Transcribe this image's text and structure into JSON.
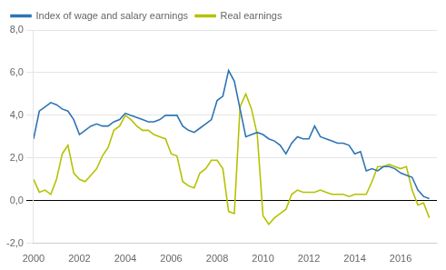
{
  "chart_data": {
    "type": "line",
    "x": [
      2000.0,
      2000.25,
      2000.5,
      2000.75,
      2001.0,
      2001.25,
      2001.5,
      2001.75,
      2002.0,
      2002.25,
      2002.5,
      2002.75,
      2003.0,
      2003.25,
      2003.5,
      2003.75,
      2004.0,
      2004.25,
      2004.5,
      2004.75,
      2005.0,
      2005.25,
      2005.5,
      2005.75,
      2006.0,
      2006.25,
      2006.5,
      2006.75,
      2007.0,
      2007.25,
      2007.5,
      2007.75,
      2008.0,
      2008.25,
      2008.5,
      2008.75,
      2009.0,
      2009.25,
      2009.5,
      2009.75,
      2010.0,
      2010.25,
      2010.5,
      2010.75,
      2011.0,
      2011.25,
      2011.5,
      2011.75,
      2012.0,
      2012.25,
      2012.5,
      2012.75,
      2013.0,
      2013.25,
      2013.5,
      2013.75,
      2014.0,
      2014.25,
      2014.5,
      2014.75,
      2015.0,
      2015.25,
      2015.5,
      2015.75,
      2016.0,
      2016.25,
      2016.5,
      2016.75,
      2017.0,
      2017.25
    ],
    "series": [
      {
        "name": "Index of wage and salary earnings",
        "color": "#2e74b5",
        "values": [
          2.9,
          4.2,
          4.4,
          4.6,
          4.5,
          4.3,
          4.2,
          3.8,
          3.1,
          3.3,
          3.5,
          3.6,
          3.5,
          3.5,
          3.7,
          3.8,
          4.1,
          4.0,
          3.9,
          3.8,
          3.7,
          3.7,
          3.8,
          4.0,
          4.0,
          4.0,
          3.5,
          3.3,
          3.2,
          3.4,
          3.6,
          3.8,
          4.7,
          4.9,
          6.1,
          5.6,
          4.3,
          3.0,
          3.1,
          3.2,
          3.1,
          2.9,
          2.8,
          2.6,
          2.2,
          2.7,
          3.0,
          2.9,
          2.9,
          3.5,
          3.0,
          2.9,
          2.8,
          2.7,
          2.7,
          2.6,
          2.2,
          2.3,
          1.4,
          1.5,
          1.4,
          1.6,
          1.6,
          1.5,
          1.3,
          1.2,
          1.1,
          0.5,
          0.2,
          0.1
        ]
      },
      {
        "name": "Real earnings",
        "color": "#b5c200",
        "values": [
          1.0,
          0.4,
          0.5,
          0.3,
          1.0,
          2.2,
          2.6,
          1.3,
          1.0,
          0.9,
          1.2,
          1.5,
          2.1,
          2.5,
          3.3,
          3.5,
          4.0,
          3.8,
          3.5,
          3.3,
          3.3,
          3.1,
          3.0,
          2.9,
          2.2,
          2.1,
          0.9,
          0.7,
          0.6,
          1.3,
          1.5,
          1.9,
          1.9,
          1.5,
          -0.5,
          -0.6,
          4.4,
          5.0,
          4.3,
          3.1,
          -0.7,
          -1.1,
          -0.8,
          -0.6,
          -0.4,
          0.3,
          0.5,
          0.4,
          0.4,
          0.4,
          0.5,
          0.4,
          0.3,
          0.3,
          0.3,
          0.2,
          0.3,
          0.3,
          0.3,
          0.9,
          1.6,
          1.6,
          1.7,
          1.6,
          1.5,
          1.6,
          0.5,
          -0.2,
          -0.1,
          -0.8
        ]
      }
    ],
    "xlim": [
      2000.0,
      2017.58
    ],
    "xticks": [
      2000,
      2002,
      2004,
      2006,
      2008,
      2010,
      2012,
      2014,
      2016
    ],
    "ylim": [
      -2.0,
      8.0
    ],
    "yticks": [
      {
        "value": -2.0,
        "label": "-2,0"
      },
      {
        "value": 0.0,
        "label": "0,0"
      },
      {
        "value": 2.0,
        "label": "2,0"
      },
      {
        "value": 4.0,
        "label": "4,0"
      },
      {
        "value": 6.0,
        "label": "6,0"
      },
      {
        "value": 8.0,
        "label": "8,0"
      }
    ],
    "grid": "y",
    "legend": "upper left"
  }
}
